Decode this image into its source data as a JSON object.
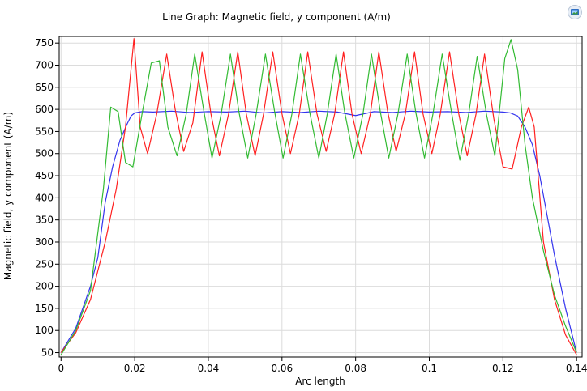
{
  "chart_data": {
    "type": "line",
    "title": "Line Graph: Magnetic field, y component (A/m)",
    "xlabel": "Arc length",
    "ylabel": "Magnetic field, y component (A/m)",
    "xlim": [
      -0.0005,
      0.1415
    ],
    "ylim": [
      40,
      765
    ],
    "xticks": [
      0,
      0.02,
      0.04,
      0.06,
      0.08,
      0.1,
      0.12,
      0.14
    ],
    "yticks": [
      50,
      100,
      150,
      200,
      250,
      300,
      350,
      400,
      450,
      500,
      550,
      600,
      650,
      700,
      750
    ],
    "grid": true,
    "legend": "none",
    "series": [
      {
        "color": "#3333ee",
        "x": [
          0,
          0.004,
          0.008,
          0.01,
          0.012,
          0.014,
          0.016,
          0.018,
          0.019,
          0.02,
          0.022,
          0.025,
          0.03,
          0.035,
          0.04,
          0.045,
          0.05,
          0.055,
          0.06,
          0.065,
          0.07,
          0.075,
          0.08,
          0.085,
          0.09,
          0.095,
          0.1,
          0.105,
          0.11,
          0.115,
          0.12,
          0.122,
          0.124,
          0.126,
          0.128,
          0.13,
          0.132,
          0.134,
          0.137,
          0.14
        ],
        "y": [
          50,
          105,
          200,
          265,
          390,
          470,
          530,
          568,
          585,
          592,
          595,
          594,
          596,
          593,
          595,
          594,
          596,
          592,
          595,
          593,
          596,
          594,
          586,
          595,
          593,
          596,
          594,
          595,
          593,
          596,
          594,
          592,
          585,
          560,
          520,
          450,
          360,
          270,
          150,
          50
        ]
      },
      {
        "color": "#ff2020",
        "x": [
          0,
          0.004,
          0.008,
          0.012,
          0.015,
          0.0175,
          0.0198,
          0.0215,
          0.0235,
          0.026,
          0.0287,
          0.031,
          0.0333,
          0.0358,
          0.0383,
          0.0407,
          0.043,
          0.0455,
          0.048,
          0.0503,
          0.0527,
          0.055,
          0.0575,
          0.06,
          0.0623,
          0.0647,
          0.067,
          0.0695,
          0.072,
          0.0743,
          0.0767,
          0.079,
          0.0815,
          0.084,
          0.0863,
          0.0887,
          0.091,
          0.0935,
          0.096,
          0.0983,
          0.1007,
          0.103,
          0.1055,
          0.108,
          0.1103,
          0.1127,
          0.115,
          0.1175,
          0.12,
          0.1225,
          0.125,
          0.127,
          0.1285,
          0.131,
          0.134,
          0.137,
          0.14
        ],
        "y": [
          50,
          95,
          170,
          300,
          420,
          560,
          760,
          560,
          500,
          590,
          725,
          600,
          505,
          570,
          730,
          590,
          495,
          590,
          730,
          590,
          495,
          590,
          730,
          590,
          500,
          590,
          730,
          590,
          505,
          590,
          730,
          590,
          500,
          590,
          730,
          595,
          505,
          590,
          730,
          590,
          500,
          590,
          730,
          590,
          495,
          590,
          725,
          580,
          470,
          465,
          560,
          605,
          560,
          300,
          170,
          90,
          45
        ]
      },
      {
        "color": "#33bb33",
        "x": [
          0,
          0.004,
          0.008,
          0.0115,
          0.0135,
          0.0155,
          0.0175,
          0.0195,
          0.022,
          0.0245,
          0.0267,
          0.029,
          0.0315,
          0.034,
          0.0363,
          0.0387,
          0.041,
          0.0435,
          0.046,
          0.0483,
          0.0507,
          0.053,
          0.0555,
          0.058,
          0.0603,
          0.0627,
          0.065,
          0.0675,
          0.07,
          0.0723,
          0.0747,
          0.077,
          0.0795,
          0.082,
          0.0843,
          0.0867,
          0.089,
          0.0915,
          0.094,
          0.0963,
          0.0987,
          0.101,
          0.1035,
          0.106,
          0.1083,
          0.1107,
          0.113,
          0.1155,
          0.1178,
          0.1205,
          0.1222,
          0.124,
          0.126,
          0.128,
          0.131,
          0.134,
          0.137,
          0.14
        ],
        "y": [
          45,
          100,
          190,
          420,
          605,
          595,
          480,
          470,
          590,
          705,
          710,
          560,
          495,
          590,
          725,
          600,
          490,
          590,
          725,
          595,
          490,
          590,
          725,
          595,
          490,
          590,
          725,
          595,
          490,
          590,
          725,
          595,
          490,
          590,
          725,
          595,
          490,
          590,
          725,
          595,
          490,
          590,
          725,
          595,
          485,
          590,
          720,
          590,
          495,
          715,
          758,
          690,
          520,
          400,
          280,
          180,
          110,
          50
        ]
      }
    ]
  },
  "toolbar": {
    "export_icon": "image-export-icon"
  }
}
